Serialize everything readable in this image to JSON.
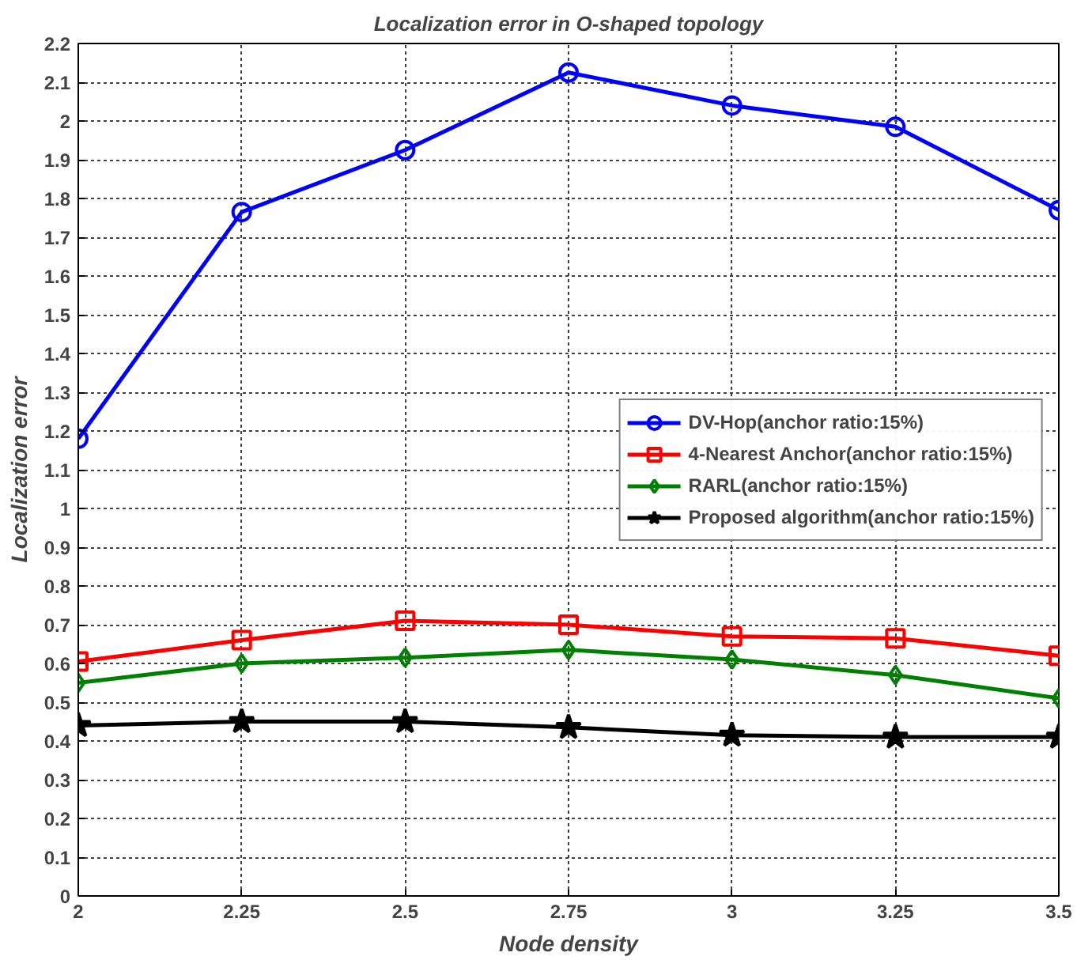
{
  "chart_data": {
    "type": "line",
    "title": "Localization error in O-shaped topology",
    "xlabel": "Node density",
    "ylabel": "Localization error",
    "x": [
      2,
      2.25,
      2.5,
      2.75,
      3,
      3.25,
      3.5
    ],
    "series": [
      {
        "name": "DV-Hop(anchor ratio:15%)",
        "color": "#0000ff",
        "marker": "circle",
        "values": [
          1.18,
          1.765,
          1.925,
          2.125,
          2.04,
          1.985,
          1.77
        ]
      },
      {
        "name": "4-Nearest Anchor(anchor ratio:15%)",
        "color": "#ff0000",
        "marker": "square",
        "values": [
          0.605,
          0.66,
          0.71,
          0.7,
          0.67,
          0.665,
          0.62
        ]
      },
      {
        "name": "RARL(anchor ratio:15%)",
        "color": "#008000",
        "marker": "diamond",
        "values": [
          0.55,
          0.6,
          0.615,
          0.635,
          0.61,
          0.57,
          0.51
        ]
      },
      {
        "name": "Proposed algorithm(anchor ratio:15%)",
        "color": "#000000",
        "marker": "star",
        "values": [
          0.44,
          0.45,
          0.45,
          0.435,
          0.415,
          0.41,
          0.41
        ]
      }
    ],
    "xlim": [
      2,
      3.5
    ],
    "xticks": [
      2,
      2.25,
      2.5,
      2.75,
      3,
      3.25,
      3.5
    ],
    "ylim": [
      0,
      2.2
    ],
    "yticks": [
      0,
      0.1,
      0.2,
      0.3,
      0.4,
      0.5,
      0.6,
      0.7,
      0.8,
      0.9,
      1,
      1.1,
      1.2,
      1.3,
      1.4,
      1.5,
      1.6,
      1.7,
      1.8,
      1.9,
      2,
      2.1,
      2.2
    ],
    "grid": true,
    "legend": "center right",
    "line_style": "solid"
  }
}
